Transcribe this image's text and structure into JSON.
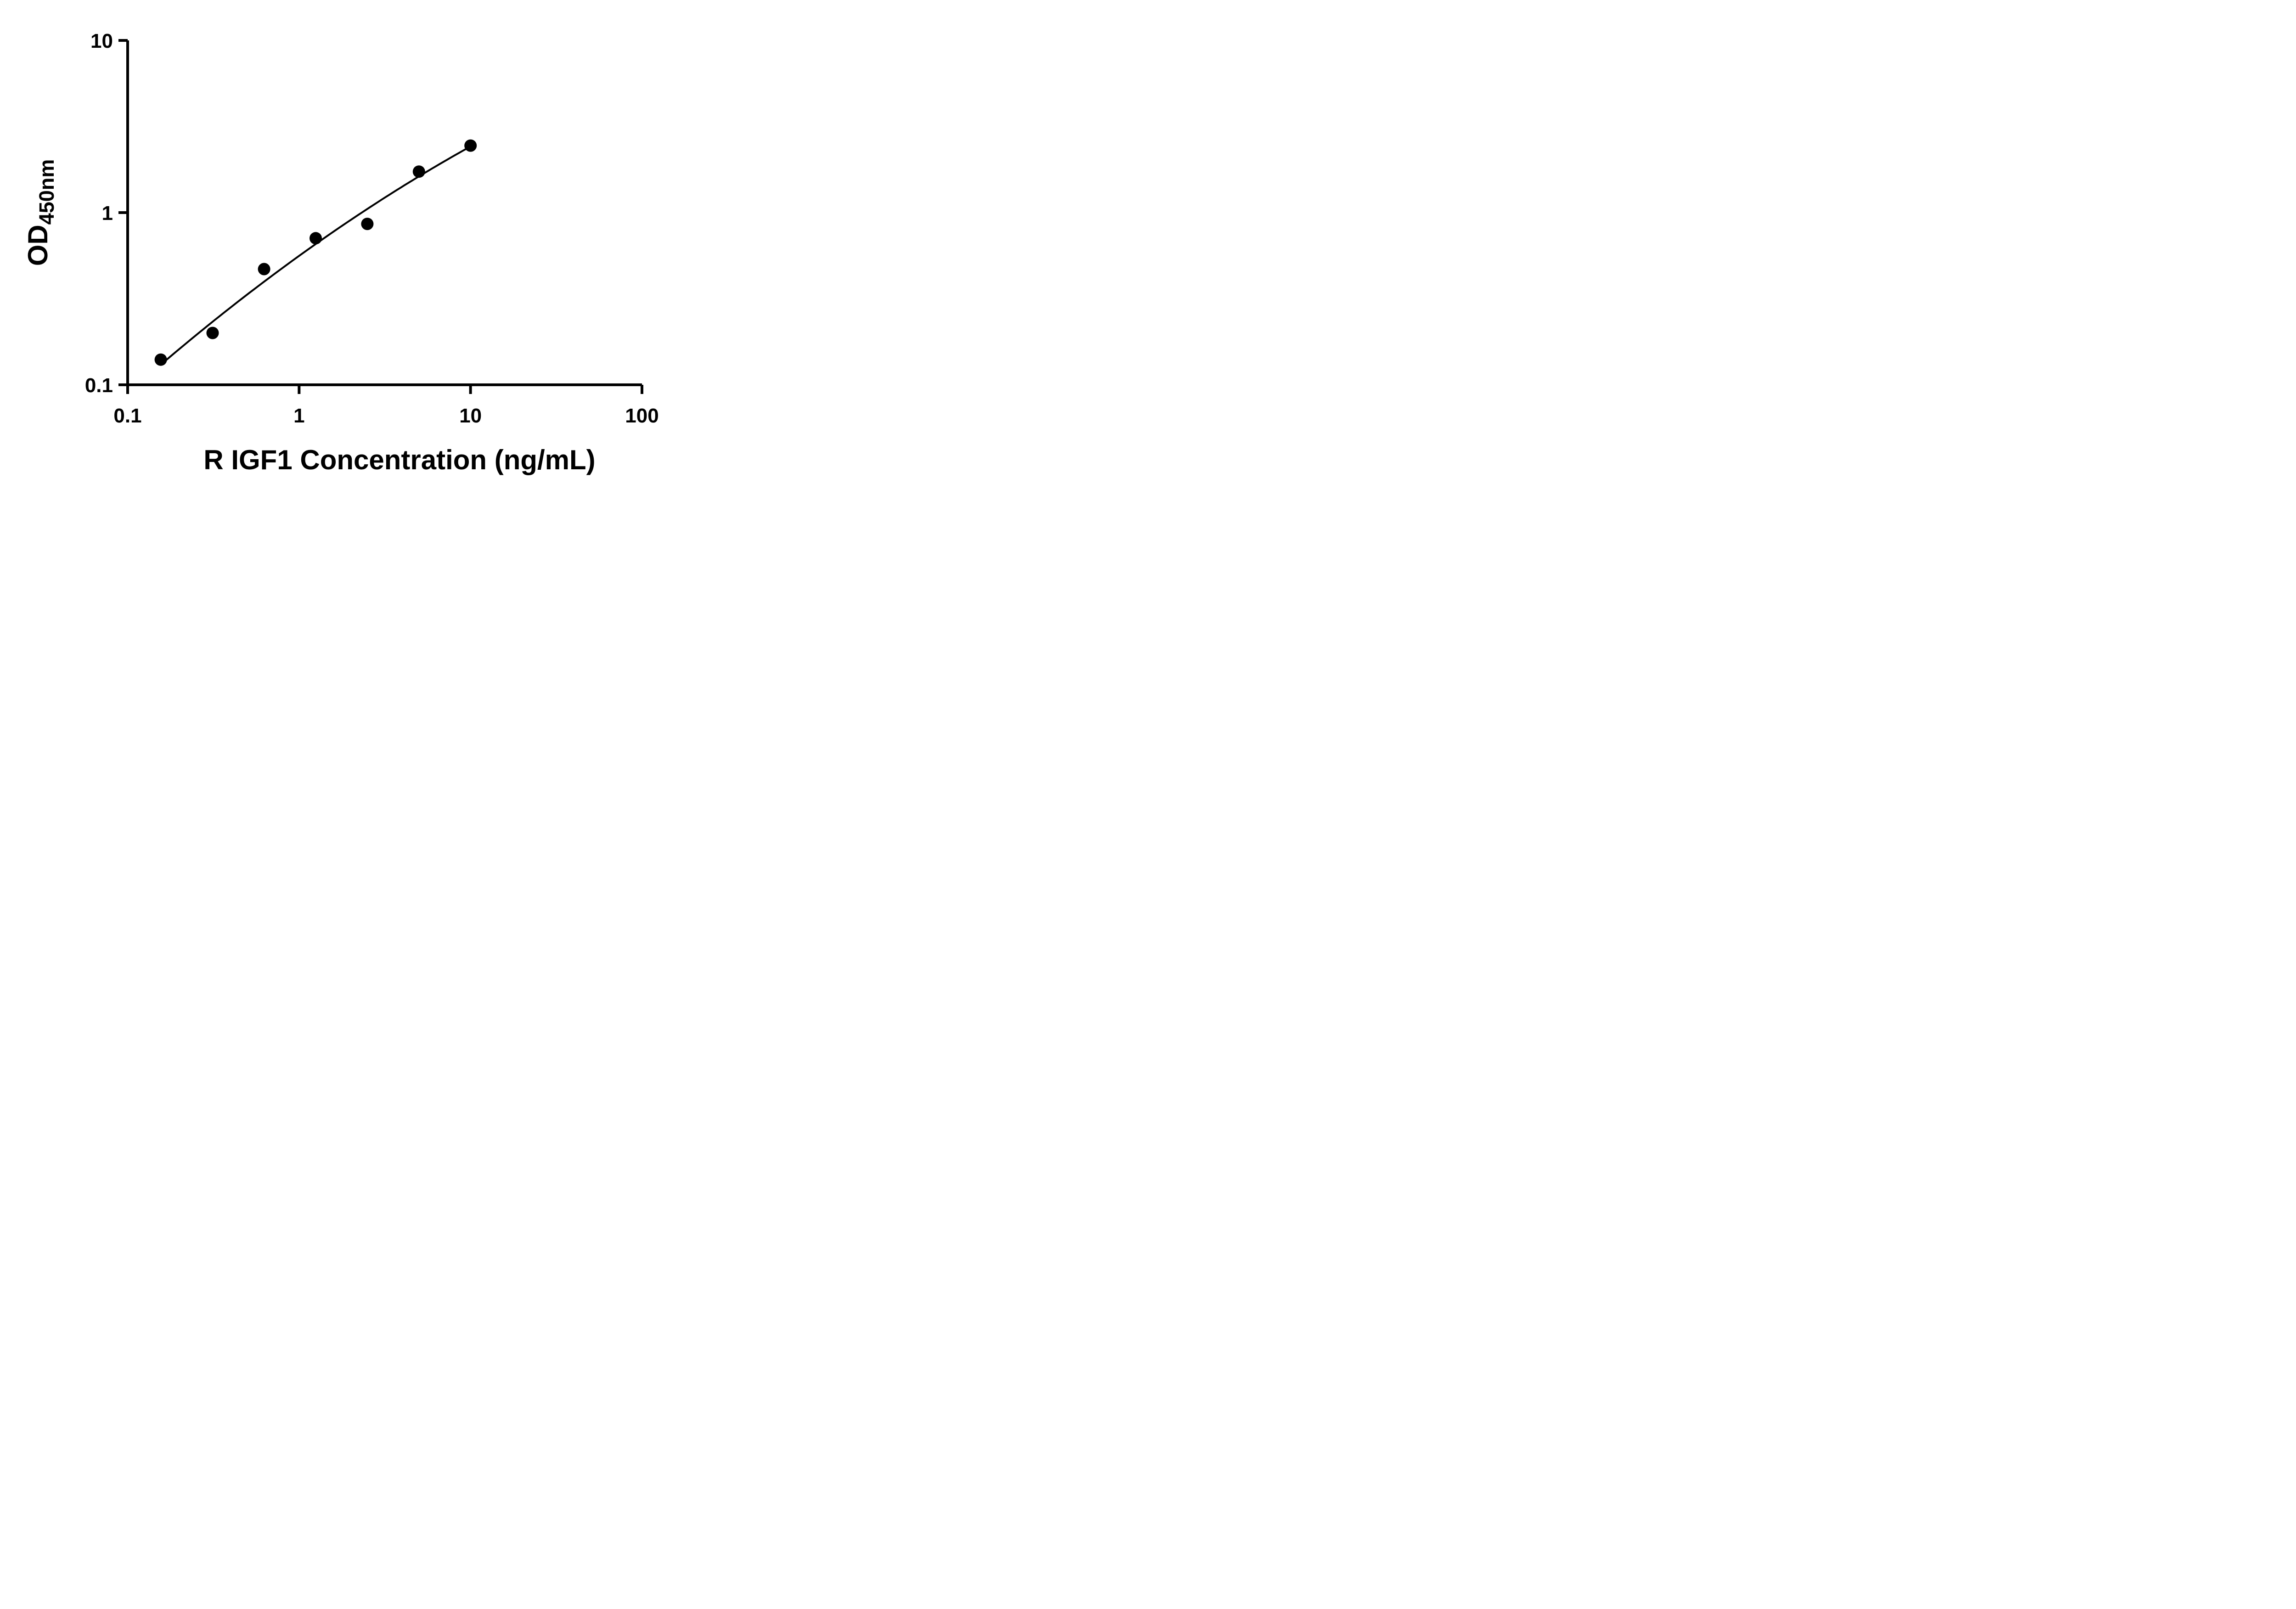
{
  "chart_data": {
    "type": "scatter",
    "title": "",
    "xlabel": "R IGF1 Concentration (ng/mL)",
    "ylabel_main": "OD",
    "ylabel_sub": "450nm",
    "x_scale": "log",
    "y_scale": "log",
    "xlim": [
      0.1,
      100
    ],
    "ylim": [
      0.1,
      10
    ],
    "x_ticks": [
      0.1,
      1,
      10,
      100
    ],
    "x_tick_labels": [
      "0.1",
      "1",
      "10",
      "100"
    ],
    "y_ticks": [
      0.1,
      1,
      10
    ],
    "y_tick_labels": [
      "0.1",
      "1",
      "10"
    ],
    "grid": false,
    "legend": false,
    "points": [
      {
        "x": 0.156,
        "y": 0.14
      },
      {
        "x": 0.313,
        "y": 0.2
      },
      {
        "x": 0.625,
        "y": 0.47
      },
      {
        "x": 1.25,
        "y": 0.71
      },
      {
        "x": 2.5,
        "y": 0.86
      },
      {
        "x": 5,
        "y": 1.73
      },
      {
        "x": 10,
        "y": 2.45
      }
    ],
    "fit_curve": {
      "type": "quadratic_loglog",
      "a": -0.1825,
      "b": 0.7014,
      "c": -0.0816,
      "u0": 0.0969,
      "x_range": [
        0.156,
        10
      ]
    },
    "marker_color": "#000000",
    "line_color": "#000000",
    "axis_color": "#000000",
    "background_color": "#ffffff"
  }
}
